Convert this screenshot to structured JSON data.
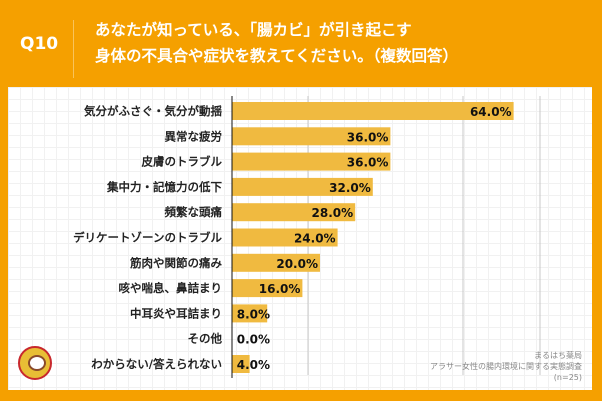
{
  "header": {
    "question": "Q10",
    "title_line1": "あなたが知っている、「腸カビ」が引き起こす",
    "title_line2": "身体の不具合や症状を教えてください。（複数回答）"
  },
  "source": {
    "line1": "まるはち薬局",
    "line2": "アラサー女性の腸内環境に関する実態調査",
    "line3": "(n=25)"
  },
  "colors": {
    "background": "#F5A000",
    "bar": "#F0BA40"
  },
  "chart_data": {
    "type": "bar",
    "orientation": "horizontal",
    "categories": [
      "気分がふさぐ・気分が動揺",
      "異常な疲労",
      "皮膚のトラブル",
      "集中力・記憶力の低下",
      "頻繁な頭痛",
      "デリケートゾーンのトラブル",
      "筋肉や関節の痛み",
      "咳や喘息、鼻詰まり",
      "中耳炎や耳詰まり",
      "その他",
      "わからない/答えられない"
    ],
    "values": [
      64.0,
      36.0,
      36.0,
      32.0,
      28.0,
      24.0,
      20.0,
      16.0,
      8.0,
      0.0,
      4.0
    ],
    "value_labels": [
      "64.0%",
      "36.0%",
      "36.0%",
      "32.0%",
      "28.0%",
      "24.0%",
      "20.0%",
      "16.0%",
      "8.0%",
      "0.0%",
      "4.0%"
    ],
    "unit": "%",
    "title": "",
    "xlabel": "",
    "ylabel": ""
  }
}
